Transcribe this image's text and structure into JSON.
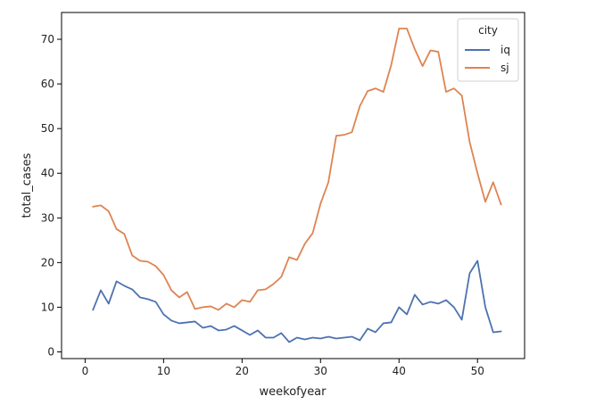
{
  "chart_data": {
    "type": "line",
    "xlabel": "weekofyear",
    "ylabel": "total_cases",
    "xlim": [
      -3,
      56
    ],
    "ylim": [
      -1.5,
      76
    ],
    "xticks": [
      0,
      10,
      20,
      30,
      40,
      50
    ],
    "yticks": [
      0,
      10,
      20,
      30,
      40,
      50,
      60,
      70
    ],
    "grid": false,
    "legend": {
      "title": "city",
      "placement": "top-right"
    },
    "x": [
      1,
      2,
      3,
      4,
      5,
      6,
      7,
      8,
      9,
      10,
      11,
      12,
      13,
      14,
      15,
      16,
      17,
      18,
      19,
      20,
      21,
      22,
      23,
      24,
      25,
      26,
      27,
      28,
      29,
      30,
      31,
      32,
      33,
      34,
      35,
      36,
      37,
      38,
      39,
      40,
      41,
      42,
      43,
      44,
      45,
      46,
      47,
      48,
      49,
      50,
      51,
      52,
      53
    ],
    "series": [
      {
        "name": "iq",
        "color": "#4c72b0",
        "values": [
          9.4,
          13.8,
          10.8,
          15.8,
          14.8,
          14.0,
          12.2,
          11.8,
          11.2,
          8.4,
          7.0,
          6.4,
          6.6,
          6.8,
          5.4,
          5.8,
          4.8,
          5.0,
          5.8,
          4.8,
          3.8,
          4.8,
          3.2,
          3.2,
          4.2,
          2.2,
          3.2,
          2.8,
          3.2,
          3.0,
          3.4,
          3.0,
          3.2,
          3.4,
          2.6,
          5.2,
          4.4,
          6.4,
          6.6,
          10.0,
          8.4,
          12.8,
          10.6,
          11.2,
          10.8,
          11.6,
          10.0,
          7.2,
          17.6,
          20.4,
          10.0,
          4.4,
          4.6
        ]
      },
      {
        "name": "sj",
        "color": "#dd8452",
        "values": [
          32.5,
          32.8,
          31.5,
          27.5,
          26.4,
          21.6,
          20.4,
          20.2,
          19.2,
          17.2,
          13.8,
          12.2,
          13.4,
          9.6,
          10.0,
          10.2,
          9.4,
          10.8,
          10.0,
          11.6,
          11.2,
          13.8,
          14.0,
          15.2,
          16.8,
          21.2,
          20.6,
          24.2,
          26.6,
          33.2,
          38.0,
          48.4,
          48.6,
          49.2,
          55.0,
          58.4,
          59.0,
          58.2,
          64.2,
          72.4,
          72.4,
          67.8,
          64.0,
          67.5,
          67.2,
          58.2,
          59.0,
          57.4,
          47.0,
          40.0,
          33.6,
          38.0,
          33.0
        ]
      }
    ]
  }
}
